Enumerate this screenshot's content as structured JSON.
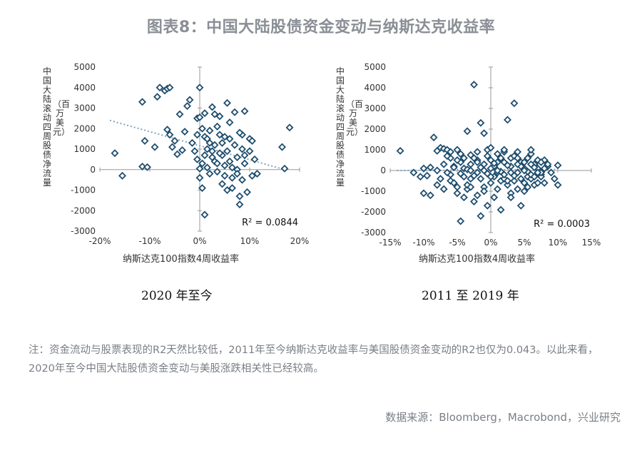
{
  "page": {
    "title": "图表8：中国大陆股债资金变动与纳斯达克收益率",
    "note": "注：资金流动与股票表现的R2天然比较低，2011年至今纳斯达克收益率与美国股债资金变动的R2也仅为0.043。以此来看，2020年至今中国大陆股债资金变动与美股涨跌相关性已经较高。",
    "source": "数据来源：Bloomberg，Macrobond，兴业研究"
  },
  "colors": {
    "marker": "#1f4e6e",
    "trend": "#7fa3c2",
    "axis": "#999999"
  },
  "chart_data": [
    {
      "type": "scatter",
      "caption": "2020 年至今",
      "ylabel": "中国大陆滚动四周股债净流量",
      "ylabel_unit": "（百万美元）",
      "xlabel": "纳斯达克100指数4周收益率",
      "r2_label": "R² = 0.0844",
      "xlim": [
        -0.2,
        0.2
      ],
      "ylim": [
        -3000,
        5000
      ],
      "x_ticks": [
        "-20%",
        "-10%",
        "0%",
        "10%",
        "20%"
      ],
      "y_ticks": [
        "5000",
        "4000",
        "3000",
        "2000",
        "1000",
        "0",
        "-1000",
        "-2000",
        "-3000"
      ],
      "trendline": [
        [
          -0.18,
          2400
        ],
        [
          0.17,
          0
        ]
      ],
      "points": [
        [
          -0.17,
          800
        ],
        [
          -0.155,
          -300
        ],
        [
          -0.115,
          3300
        ],
        [
          -0.115,
          150
        ],
        [
          -0.105,
          120
        ],
        [
          -0.11,
          1400
        ],
        [
          -0.09,
          1100
        ],
        [
          -0.085,
          3550
        ],
        [
          -0.08,
          4000
        ],
        [
          -0.07,
          3850
        ],
        [
          -0.065,
          3950
        ],
        [
          -0.06,
          4000
        ],
        [
          -0.065,
          1950
        ],
        [
          -0.06,
          1700
        ],
        [
          -0.055,
          1100
        ],
        [
          -0.05,
          1400
        ],
        [
          -0.045,
          750
        ],
        [
          -0.04,
          2700
        ],
        [
          -0.035,
          950
        ],
        [
          -0.03,
          1850
        ],
        [
          -0.025,
          3100
        ],
        [
          -0.02,
          3400
        ],
        [
          -0.015,
          1300
        ],
        [
          -0.01,
          900
        ],
        [
          -0.005,
          2500
        ],
        [
          0.0,
          2550
        ],
        [
          -0.005,
          1700
        ],
        [
          0.0,
          4000
        ],
        [
          0.005,
          2000
        ],
        [
          0.01,
          1600
        ],
        [
          0.01,
          2750
        ],
        [
          0.015,
          1500
        ],
        [
          0.02,
          1900
        ],
        [
          0.025,
          3050
        ],
        [
          0.02,
          1300
        ],
        [
          0.015,
          1000
        ],
        [
          0.01,
          700
        ],
        [
          0.005,
          300
        ],
        [
          0.0,
          50
        ],
        [
          -0.005,
          500
        ],
        [
          0.0,
          -400
        ],
        [
          0.005,
          -900
        ],
        [
          0.01,
          -2200
        ],
        [
          0.015,
          100
        ],
        [
          0.02,
          -200
        ],
        [
          0.025,
          900
        ],
        [
          0.03,
          1200
        ],
        [
          0.03,
          400
        ],
        [
          0.035,
          -100
        ],
        [
          0.035,
          2100
        ],
        [
          0.04,
          2600
        ],
        [
          0.04,
          1700
        ],
        [
          0.045,
          1300
        ],
        [
          0.045,
          700
        ],
        [
          0.05,
          200
        ],
        [
          0.05,
          -300
        ],
        [
          0.055,
          3250
        ],
        [
          0.055,
          900
        ],
        [
          0.06,
          1500
        ],
        [
          0.06,
          400
        ],
        [
          0.065,
          -400
        ],
        [
          0.065,
          -900
        ],
        [
          0.07,
          2800
        ],
        [
          0.07,
          1200
        ],
        [
          0.075,
          600
        ],
        [
          0.075,
          0
        ],
        [
          0.08,
          -1700
        ],
        [
          0.08,
          -1300
        ],
        [
          0.085,
          1700
        ],
        [
          0.085,
          1000
        ],
        [
          0.09,
          2850
        ],
        [
          0.09,
          300
        ],
        [
          0.095,
          -1100
        ],
        [
          0.1,
          1500
        ],
        [
          0.1,
          900
        ],
        [
          0.105,
          1400
        ],
        [
          0.105,
          -300
        ],
        [
          0.11,
          500
        ],
        [
          0.115,
          -200
        ],
        [
          0.08,
          1800
        ],
        [
          0.03,
          2700
        ],
        [
          0.04,
          800
        ],
        [
          0.05,
          1600
        ],
        [
          0.06,
          2300
        ],
        [
          0.165,
          1100
        ],
        [
          0.17,
          50
        ],
        [
          0.18,
          2050
        ],
        [
          0.085,
          -500
        ],
        [
          0.09,
          700
        ],
        [
          0.025,
          600
        ],
        [
          0.035,
          300
        ],
        [
          0.045,
          -700
        ],
        [
          0.055,
          -1000
        ],
        [
          0.065,
          100
        ],
        [
          0.075,
          -200
        ]
      ]
    },
    {
      "type": "scatter",
      "caption": "2011 至 2019 年",
      "ylabel": "中国大陆滚动四周股债净流量",
      "ylabel_unit": "（百万美元）",
      "xlabel": "纳斯达克100指数4周收益率",
      "r2_label": "R² = 0.0003",
      "xlim": [
        -0.15,
        0.15
      ],
      "ylim": [
        -3000,
        5000
      ],
      "x_ticks": [
        "-15%",
        "-10%",
        "-5%",
        "0%",
        "5%",
        "10%",
        "15%"
      ],
      "y_ticks": [
        "5000",
        "4000",
        "3000",
        "2000",
        "1000",
        "0",
        "-1000",
        "-2000",
        "-3000"
      ],
      "trendline": [
        [
          -0.14,
          0
        ],
        [
          0.1,
          50
        ]
      ],
      "points": [
        [
          -0.135,
          950
        ],
        [
          -0.115,
          -100
        ],
        [
          -0.105,
          -300
        ],
        [
          -0.1,
          100
        ],
        [
          -0.095,
          -250
        ],
        [
          -0.09,
          150
        ],
        [
          -0.085,
          1600
        ],
        [
          -0.08,
          950
        ],
        [
          -0.075,
          1100
        ],
        [
          -0.07,
          1050
        ],
        [
          -0.065,
          1000
        ],
        [
          -0.06,
          600
        ],
        [
          -0.055,
          200
        ],
        [
          -0.05,
          1000
        ],
        [
          -0.045,
          400
        ],
        [
          -0.04,
          100
        ],
        [
          -0.035,
          1900
        ],
        [
          -0.03,
          750
        ],
        [
          -0.025,
          4150
        ],
        [
          -0.02,
          500
        ],
        [
          -0.015,
          2300
        ],
        [
          -0.01,
          1800
        ],
        [
          -0.005,
          1000
        ],
        [
          0.0,
          500
        ],
        [
          0.005,
          200
        ],
        [
          0.01,
          -100
        ],
        [
          0.015,
          -500
        ],
        [
          0.02,
          900
        ],
        [
          0.025,
          2450
        ],
        [
          0.03,
          600
        ],
        [
          0.035,
          3250
        ],
        [
          0.04,
          900
        ],
        [
          0.045,
          400
        ],
        [
          0.05,
          100
        ],
        [
          0.055,
          -300
        ],
        [
          0.06,
          800
        ],
        [
          0.065,
          300
        ],
        [
          0.07,
          100
        ],
        [
          0.075,
          -200
        ],
        [
          0.08,
          500
        ],
        [
          0.085,
          200
        ],
        [
          0.09,
          -100
        ],
        [
          0.095,
          -400
        ],
        [
          0.1,
          250
        ],
        [
          0.1,
          -700
        ],
        [
          -0.1,
          -1100
        ],
        [
          -0.09,
          -1200
        ],
        [
          -0.08,
          -700
        ],
        [
          -0.07,
          -900
        ],
        [
          -0.06,
          -500
        ],
        [
          -0.05,
          -1100
        ],
        [
          -0.045,
          -2450
        ],
        [
          -0.04,
          -1300
        ],
        [
          -0.035,
          -900
        ],
        [
          -0.03,
          -400
        ],
        [
          -0.025,
          -1500
        ],
        [
          -0.02,
          -1200
        ],
        [
          -0.015,
          -2200
        ],
        [
          -0.01,
          -800
        ],
        [
          -0.005,
          -1700
        ],
        [
          0.0,
          -600
        ],
        [
          0.005,
          -1300
        ],
        [
          0.01,
          -900
        ],
        [
          0.015,
          -1900
        ],
        [
          0.02,
          -400
        ],
        [
          0.025,
          -700
        ],
        [
          0.03,
          -1100
        ],
        [
          0.035,
          -500
        ],
        [
          0.04,
          -900
        ],
        [
          0.045,
          -1700
        ],
        [
          0.05,
          -600
        ],
        [
          0.055,
          -800
        ],
        [
          0.06,
          -400
        ],
        [
          0.065,
          -700
        ],
        [
          0.07,
          -600
        ],
        [
          0.075,
          -300
        ],
        [
          0.08,
          -600
        ],
        [
          -0.07,
          300
        ],
        [
          -0.06,
          -200
        ],
        [
          -0.05,
          500
        ],
        [
          -0.04,
          -300
        ],
        [
          -0.03,
          300
        ],
        [
          -0.02,
          -100
        ],
        [
          -0.01,
          300
        ],
        [
          0.0,
          100
        ],
        [
          0.01,
          400
        ],
        [
          0.02,
          -200
        ],
        [
          0.03,
          200
        ],
        [
          0.04,
          -100
        ],
        [
          0.05,
          400
        ],
        [
          0.06,
          -200
        ],
        [
          0.07,
          500
        ],
        [
          -0.065,
          700
        ],
        [
          -0.055,
          -600
        ],
        [
          -0.045,
          800
        ],
        [
          -0.035,
          -700
        ],
        [
          -0.025,
          600
        ],
        [
          -0.015,
          -400
        ],
        [
          -0.005,
          700
        ],
        [
          0.005,
          -300
        ],
        [
          0.015,
          600
        ],
        [
          0.025,
          -500
        ],
        [
          0.035,
          700
        ],
        [
          0.045,
          -400
        ],
        [
          0.055,
          600
        ],
        [
          0.065,
          -300
        ],
        [
          0.075,
          400
        ],
        [
          -0.08,
          0
        ],
        [
          -0.075,
          -400
        ],
        [
          -0.065,
          -100
        ],
        [
          -0.055,
          150
        ],
        [
          -0.045,
          -150
        ],
        [
          -0.035,
          50
        ],
        [
          -0.025,
          -250
        ],
        [
          -0.015,
          150
        ],
        [
          -0.005,
          -150
        ],
        [
          0.005,
          350
        ],
        [
          0.015,
          -50
        ],
        [
          0.025,
          250
        ],
        [
          0.035,
          -250
        ],
        [
          0.045,
          200
        ],
        [
          0.055,
          -50
        ],
        [
          0.065,
          150
        ],
        [
          0.075,
          -100
        ],
        [
          0.085,
          300
        ],
        [
          -0.03,
          -800
        ],
        [
          -0.02,
          900
        ],
        [
          -0.01,
          -1000
        ],
        [
          0.0,
          1100
        ],
        [
          0.01,
          800
        ],
        [
          0.02,
          1000
        ],
        [
          0.03,
          -1300
        ],
        [
          0.04,
          600
        ],
        [
          0.05,
          -1000
        ],
        [
          0.06,
          1000
        ],
        [
          -0.06,
          900
        ],
        [
          -0.05,
          -800
        ],
        [
          -0.04,
          600
        ],
        [
          -0.03,
          0
        ],
        [
          -0.02,
          400
        ],
        [
          -0.01,
          0
        ],
        [
          0.0,
          -300
        ],
        [
          0.01,
          0
        ],
        [
          0.02,
          400
        ],
        [
          0.03,
          -100
        ],
        [
          0.04,
          300
        ],
        [
          0.05,
          0
        ],
        [
          0.06,
          300
        ],
        [
          0.07,
          -100
        ],
        [
          0.08,
          100
        ]
      ]
    }
  ]
}
